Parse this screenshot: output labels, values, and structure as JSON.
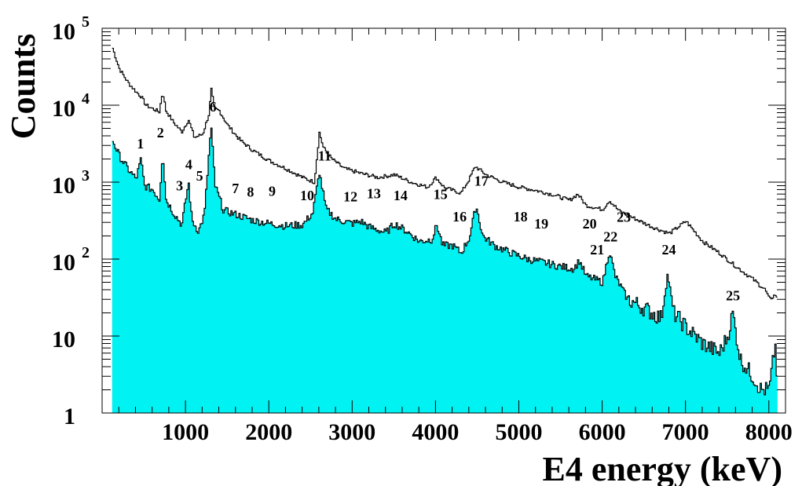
{
  "chart_data": {
    "type": "area",
    "xlabel": "E4 energy (keV)",
    "ylabel": "Counts",
    "log_y": true,
    "xlim": [
      0,
      8200
    ],
    "ylim": [
      1,
      100000
    ],
    "grid": false,
    "x_ticks": [
      {
        "value": 1000,
        "label": "1000"
      },
      {
        "value": 2000,
        "label": "2000"
      },
      {
        "value": 3000,
        "label": "3000"
      },
      {
        "value": 4000,
        "label": "4000"
      },
      {
        "value": 5000,
        "label": "5000"
      },
      {
        "value": 6000,
        "label": "6000"
      },
      {
        "value": 7000,
        "label": "7000"
      },
      {
        "value": 8000,
        "label": "8000"
      }
    ],
    "y_ticks": [
      {
        "value": 1,
        "base": "1",
        "exp": ""
      },
      {
        "value": 10,
        "base": "10",
        "exp": ""
      },
      {
        "value": 100,
        "base": "10",
        "exp": "2"
      },
      {
        "value": 1000,
        "base": "10",
        "exp": "3"
      },
      {
        "value": 10000,
        "base": "10",
        "exp": "4"
      },
      {
        "value": 100000,
        "base": "10",
        "exp": "5"
      }
    ],
    "series": [
      {
        "style": "outline",
        "color": "#000000",
        "x": [
          120,
          200,
          300,
          400,
          460,
          520,
          600,
          680,
          720,
          760,
          850,
          950,
          1030,
          1100,
          1200,
          1280,
          1300,
          1340,
          1400,
          1500,
          1650,
          1800,
          2000,
          2200,
          2400,
          2540,
          2600,
          2650,
          2750,
          2900,
          3100,
          3300,
          3500,
          3700,
          3900,
          4000,
          4100,
          4300,
          4400,
          4470,
          4600,
          4800,
          5000,
          5200,
          5400,
          5600,
          5700,
          5800,
          6000,
          6080,
          6200,
          6400,
          6600,
          6800,
          7000,
          7200,
          7400,
          7600,
          7800,
          7950,
          8000,
          8080,
          8100
        ],
        "values": [
          55000,
          30000,
          20000,
          15000,
          13000,
          10000,
          9000,
          8200,
          15000,
          8500,
          6000,
          4500,
          6500,
          3800,
          4200,
          8000,
          17000,
          9000,
          8500,
          5500,
          3500,
          2600,
          1900,
          1500,
          1150,
          1000,
          4400,
          2800,
          2000,
          1500,
          1300,
          1150,
          1250,
          1000,
          860,
          1150,
          850,
          720,
          1100,
          1600,
          1250,
          1000,
          860,
          780,
          690,
          580,
          700,
          500,
          440,
          580,
          420,
          330,
          260,
          215,
          310,
          170,
          120,
          80,
          55,
          40,
          30,
          35,
          26
        ]
      },
      {
        "style": "filled",
        "color": "#00f2f2",
        "x": [
          120,
          200,
          300,
          400,
          460,
          500,
          600,
          680,
          720,
          760,
          850,
          950,
          1030,
          1070,
          1150,
          1220,
          1300,
          1350,
          1450,
          1600,
          1800,
          2000,
          2200,
          2400,
          2520,
          2600,
          2680,
          2800,
          3000,
          3100,
          3200,
          3300,
          3400,
          3500,
          3650,
          3800,
          3950,
          4010,
          4080,
          4200,
          4300,
          4400,
          4480,
          4560,
          4700,
          4900,
          5100,
          5300,
          5500,
          5650,
          5720,
          5800,
          5900,
          6000,
          6080,
          6150,
          6300,
          6500,
          6700,
          6780,
          6850,
          7000,
          7200,
          7400,
          7500,
          7560,
          7650,
          7800,
          7900,
          8000,
          8070,
          8100
        ],
        "values": [
          3500,
          2200,
          1500,
          1100,
          2000,
          900,
          800,
          600,
          2500,
          600,
          400,
          280,
          1000,
          320,
          230,
          380,
          5500,
          900,
          430,
          380,
          320,
          290,
          270,
          280,
          400,
          1350,
          450,
          330,
          290,
          310,
          260,
          240,
          220,
          290,
          230,
          170,
          180,
          280,
          150,
          150,
          120,
          190,
          500,
          200,
          150,
          120,
          100,
          90,
          80,
          75,
          95,
          60,
          55,
          50,
          130,
          60,
          30,
          23,
          17,
          65,
          20,
          13,
          8,
          6,
          10,
          20,
          5,
          3,
          2,
          2,
          8,
          2
        ]
      }
    ],
    "annotations": [
      {
        "text": "1",
        "x": 460,
        "y": 2750
      },
      {
        "text": "2",
        "x": 700,
        "y": 3800
      },
      {
        "text": "3",
        "x": 930,
        "y": 780
      },
      {
        "text": "4",
        "x": 1040,
        "y": 1480
      },
      {
        "text": "5",
        "x": 1170,
        "y": 1050
      },
      {
        "text": "6",
        "x": 1330,
        "y": 8300
      },
      {
        "text": "7",
        "x": 1600,
        "y": 720
      },
      {
        "text": "8",
        "x": 1780,
        "y": 650
      },
      {
        "text": "9",
        "x": 2040,
        "y": 660
      },
      {
        "text": "10",
        "x": 2460,
        "y": 580
      },
      {
        "text": "11",
        "x": 2670,
        "y": 1900
      },
      {
        "text": "12",
        "x": 2980,
        "y": 560
      },
      {
        "text": "13",
        "x": 3260,
        "y": 620
      },
      {
        "text": "14",
        "x": 3580,
        "y": 580
      },
      {
        "text": "15",
        "x": 4060,
        "y": 600
      },
      {
        "text": "16",
        "x": 4290,
        "y": 310
      },
      {
        "text": "17",
        "x": 4550,
        "y": 900
      },
      {
        "text": "18",
        "x": 5020,
        "y": 310
      },
      {
        "text": "19",
        "x": 5270,
        "y": 250
      },
      {
        "text": "20",
        "x": 5850,
        "y": 250
      },
      {
        "text": "21",
        "x": 5940,
        "y": 115
      },
      {
        "text": "22",
        "x": 6100,
        "y": 170
      },
      {
        "text": "23",
        "x": 6260,
        "y": 305
      },
      {
        "text": "24",
        "x": 6800,
        "y": 115
      },
      {
        "text": "25",
        "x": 7570,
        "y": 29
      }
    ]
  }
}
